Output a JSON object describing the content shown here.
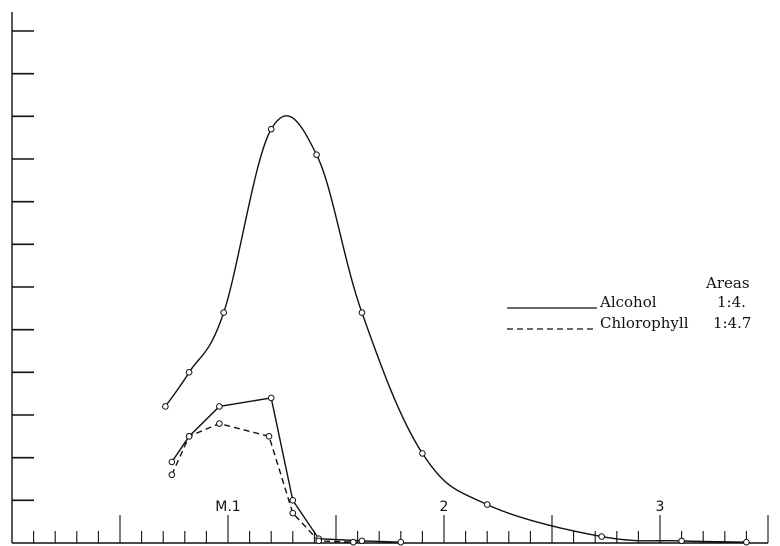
{
  "chart_data": {
    "type": "line",
    "title": "",
    "xlabel": "",
    "ylabel": "",
    "x_tick_labels": [
      {
        "x": 1,
        "label": "M.1"
      },
      {
        "x": 2,
        "label": "2"
      },
      {
        "x": 3,
        "label": "3"
      }
    ],
    "xlim": [
      0,
      3.5
    ],
    "ylim": [
      0,
      12
    ],
    "legend": {
      "placement": "right",
      "header": "Areas",
      "entries": [
        {
          "series": "Alcohol",
          "ratio": "1:4.",
          "style": "solid"
        },
        {
          "series": "Chlorophyll",
          "ratio": "1:4.7",
          "style": "dashed"
        }
      ]
    },
    "series": [
      {
        "name": "Alcohol",
        "style": "solid",
        "smooth": true,
        "x": [
          0.71,
          0.82,
          0.98,
          1.2,
          1.41,
          1.62,
          1.9,
          2.2,
          2.73,
          3.1,
          3.4
        ],
        "y": [
          3.2,
          4.0,
          5.4,
          9.7,
          9.1,
          5.4,
          2.1,
          0.9,
          0.15,
          0.05,
          0.02
        ]
      },
      {
        "name": "Alcohol",
        "style": "solid",
        "smooth": false,
        "x": [
          0.74,
          0.82,
          0.96,
          1.2,
          1.3,
          1.42,
          1.62,
          1.8
        ],
        "y": [
          1.9,
          2.5,
          3.2,
          3.4,
          1.0,
          0.1,
          0.05,
          0.02
        ]
      },
      {
        "name": "Chlorophyll",
        "style": "dashed",
        "smooth": false,
        "x": [
          0.74,
          0.82,
          0.96,
          1.19,
          1.3,
          1.42,
          1.58
        ],
        "y": [
          1.6,
          2.5,
          2.8,
          2.5,
          0.7,
          0.05,
          0.02
        ]
      }
    ]
  }
}
